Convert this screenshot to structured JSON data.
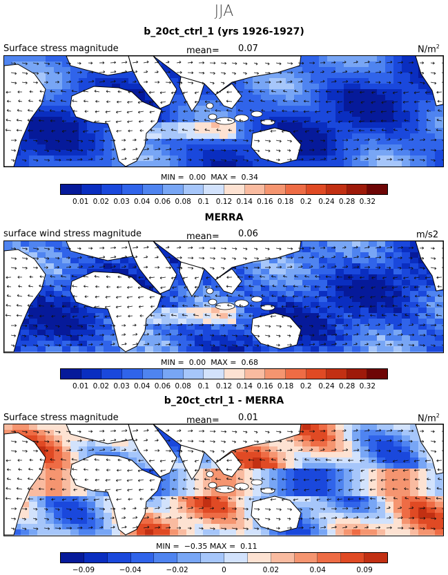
{
  "header": {
    "season": "JJA"
  },
  "panels": [
    {
      "id": "model",
      "title": "b_20ct_ctrl_1 (yrs 1926-1927)",
      "left_label": "Surface stress magnitude",
      "mean_label": "mean=",
      "mean_value": "0.07",
      "units_base": "N/m",
      "units_sup": "2",
      "min_label": "MIN =",
      "min_value": "0.00",
      "max_label": "MAX =",
      "max_value": "0.34",
      "ticks": [
        "0.01",
        "0.02",
        "0.03",
        "0.04",
        "0.06",
        "0.08",
        "0.1",
        "0.12",
        "0.14",
        "0.16",
        "0.18",
        "0.2",
        "0.24",
        "0.28",
        "0.32"
      ],
      "palette": "seq"
    },
    {
      "id": "obs",
      "title": "MERRA",
      "left_label": "surface wind stress magnitude",
      "mean_label": "mean=",
      "mean_value": "0.06",
      "units_base": "m/s2",
      "units_sup": "",
      "min_label": "MIN =",
      "min_value": "0.00",
      "max_label": "MAX =",
      "max_value": "0.68",
      "ticks": [
        "0.01",
        "0.02",
        "0.03",
        "0.04",
        "0.06",
        "0.08",
        "0.1",
        "0.12",
        "0.14",
        "0.16",
        "0.18",
        "0.2",
        "0.24",
        "0.28",
        "0.32"
      ],
      "palette": "seq"
    },
    {
      "id": "diff",
      "title": "b_20ct_ctrl_1 - MERRA",
      "left_label": "Surface stress magnitude",
      "mean_label": "mean=",
      "mean_value": "0.01",
      "units_base": "N/m",
      "units_sup": "2",
      "min_label": "MIN =",
      "min_value": "−0.35",
      "max_label": "MAX =",
      "max_value": "0.11",
      "ticks": [
        "−0.09",
        "",
        "−0.04",
        "",
        "−0.02",
        "",
        "0",
        "",
        "0.02",
        "",
        "0.04",
        "",
        "0.09"
      ],
      "palette": "div"
    }
  ],
  "colors": {
    "seq": [
      "#061a9a",
      "#0a2ec0",
      "#1a48dc",
      "#3064ea",
      "#4f84f0",
      "#78a6f5",
      "#a6c6fa",
      "#d2e2fc",
      "#fde2d2",
      "#f9bba0",
      "#f59570",
      "#ee6c45",
      "#e04a24",
      "#c23013",
      "#9e1a0a",
      "#6e0606"
    ],
    "div": [
      "#061a9a",
      "#0a2ec0",
      "#1a48dc",
      "#3064ea",
      "#4f84f0",
      "#78a6f5",
      "#a6c6fa",
      "#d2e2fc",
      "#fde2d2",
      "#f9bba0",
      "#f59570",
      "#ee6c45",
      "#e04a24",
      "#c23013"
    ],
    "land": "#ffffff",
    "coast": "#000000"
  }
}
